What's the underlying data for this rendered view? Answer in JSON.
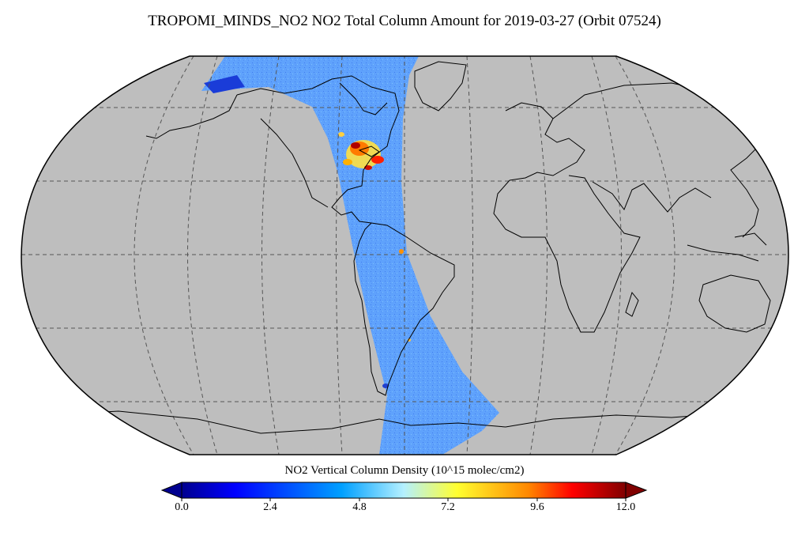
{
  "title": "TROPOMI_MINDS_NO2 NO2 Total Column Amount for 2019-03-27 (Orbit 07524)",
  "map": {
    "projection": "Robinson",
    "land_color": "#bebebe",
    "coastline_color": "#000000",
    "graticule_style": "dashed",
    "swath_region": "Americas (Arctic to Antarctica)",
    "swath_base_color": "#5aa0ff",
    "hotspot": "eastern United States"
  },
  "colorbar": {
    "label": "NO2 Vertical Column Density (10^15 molec/cm2)",
    "min": 0,
    "max": 12,
    "ticks": [
      "0.0",
      "2.4",
      "4.8",
      "7.2",
      "9.6",
      "12.0"
    ],
    "extend": "both",
    "colormap": "jet"
  }
}
